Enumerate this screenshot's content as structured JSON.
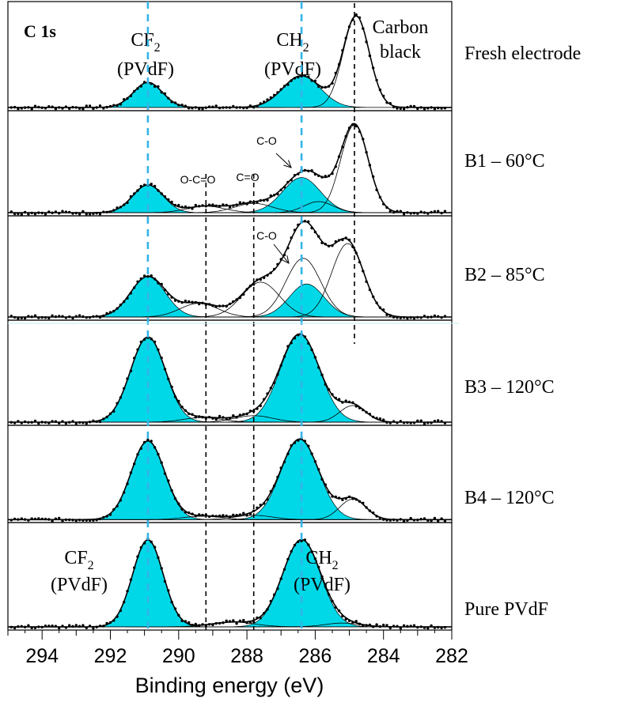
{
  "chart_data": {
    "type": "line",
    "title": "C 1s",
    "xlabel": "Binding energy (eV)",
    "ylabel": "",
    "xlim": [
      295,
      282
    ],
    "x_reversed": true,
    "x_ticks": [
      294,
      292,
      290,
      288,
      286,
      284,
      282
    ],
    "x_tick_labels": [
      "294",
      "292",
      "290",
      "288",
      "286",
      "284",
      "282"
    ],
    "grid": false,
    "colors": {
      "fill": "#00d8e8",
      "reference_line": "#33b4e8",
      "data": "#000000"
    },
    "reference_lines": [
      {
        "x": 290.9,
        "color": "#33b4e8",
        "style": "dashed"
      },
      {
        "x": 286.4,
        "color": "#33b4e8",
        "style": "dashed"
      },
      {
        "x": 289.2,
        "color": "#000000",
        "style": "dashed"
      },
      {
        "x": 287.8,
        "color": "#000000",
        "style": "dashed"
      },
      {
        "x": 284.85,
        "color": "#000000",
        "style": "dashed"
      }
    ],
    "panels": [
      {
        "label": "Fresh electrode",
        "annotations": [
          {
            "main": "CF",
            "sub": "2",
            "line2": "(PVdF)"
          },
          {
            "main": "CH",
            "sub": "2",
            "line2": "(PVdF)"
          },
          {
            "main": "Carbon",
            "line2": "black"
          }
        ],
        "peaks": [
          {
            "center": 290.9,
            "height": 0.26,
            "fwhm": 1.0,
            "filled": true
          },
          {
            "center": 286.4,
            "height": 0.33,
            "fwhm": 1.3,
            "filled": true
          },
          {
            "center": 284.8,
            "height": 0.95,
            "fwhm": 0.9,
            "filled": false
          }
        ]
      },
      {
        "label": "B1 – 60°C",
        "annotations": [
          {
            "main": "O-C=O"
          },
          {
            "main": "C=O"
          },
          {
            "main": "C-O"
          }
        ],
        "peaks": [
          {
            "center": 290.9,
            "height": 0.3,
            "fwhm": 1.05,
            "filled": true
          },
          {
            "center": 289.2,
            "height": 0.07,
            "fwhm": 1.3,
            "filled": false
          },
          {
            "center": 287.8,
            "height": 0.1,
            "fwhm": 1.3,
            "filled": false
          },
          {
            "center": 286.4,
            "height": 0.38,
            "fwhm": 1.3,
            "filled": true
          },
          {
            "center": 285.9,
            "height": 0.12,
            "fwhm": 1.0,
            "filled": false
          },
          {
            "center": 284.85,
            "height": 0.95,
            "fwhm": 0.95,
            "filled": false
          }
        ]
      },
      {
        "label": "B2 – 85°C",
        "annotations": [
          {
            "main": "C-O"
          }
        ],
        "peaks": [
          {
            "center": 290.9,
            "height": 0.44,
            "fwhm": 1.2,
            "filled": true
          },
          {
            "center": 289.4,
            "height": 0.15,
            "fwhm": 1.3,
            "filled": false
          },
          {
            "center": 287.6,
            "height": 0.38,
            "fwhm": 1.3,
            "filled": false
          },
          {
            "center": 286.35,
            "height": 0.64,
            "fwhm": 1.2,
            "filled": false
          },
          {
            "center": 286.25,
            "height": 0.36,
            "fwhm": 1.2,
            "filled": true
          },
          {
            "center": 285.05,
            "height": 0.8,
            "fwhm": 1.1,
            "filled": false
          }
        ]
      },
      {
        "label": "B3 – 120°C",
        "annotations": [],
        "peaks": [
          {
            "center": 290.9,
            "height": 0.92,
            "fwhm": 1.2,
            "filled": true
          },
          {
            "center": 289.3,
            "height": 0.05,
            "fwhm": 1.3,
            "filled": false
          },
          {
            "center": 287.8,
            "height": 0.07,
            "fwhm": 1.3,
            "filled": false
          },
          {
            "center": 286.45,
            "height": 0.95,
            "fwhm": 1.35,
            "filled": true
          },
          {
            "center": 284.9,
            "height": 0.18,
            "fwhm": 0.9,
            "filled": false
          }
        ]
      },
      {
        "label": "B4 – 120°C",
        "annotations": [],
        "peaks": [
          {
            "center": 290.9,
            "height": 0.92,
            "fwhm": 1.15,
            "filled": true
          },
          {
            "center": 289.3,
            "height": 0.04,
            "fwhm": 1.3,
            "filled": false
          },
          {
            "center": 287.8,
            "height": 0.05,
            "fwhm": 1.3,
            "filled": false
          },
          {
            "center": 286.45,
            "height": 0.94,
            "fwhm": 1.3,
            "filled": true
          },
          {
            "center": 284.9,
            "height": 0.24,
            "fwhm": 0.9,
            "filled": false
          }
        ]
      },
      {
        "label": "Pure PVdF",
        "annotations": [
          {
            "main": "CF",
            "sub": "2",
            "line2": "(PVdF)"
          },
          {
            "main": "CH",
            "sub": "2",
            "line2": "(PVdF)"
          }
        ],
        "peaks": [
          {
            "center": 290.9,
            "height": 0.92,
            "fwhm": 1.05,
            "filled": true
          },
          {
            "center": 288.4,
            "height": 0.05,
            "fwhm": 1.5,
            "filled": false
          },
          {
            "center": 286.4,
            "height": 0.92,
            "fwhm": 1.3,
            "filled": true
          },
          {
            "center": 285.2,
            "height": 0.04,
            "fwhm": 1.2,
            "filled": false
          }
        ]
      }
    ]
  }
}
